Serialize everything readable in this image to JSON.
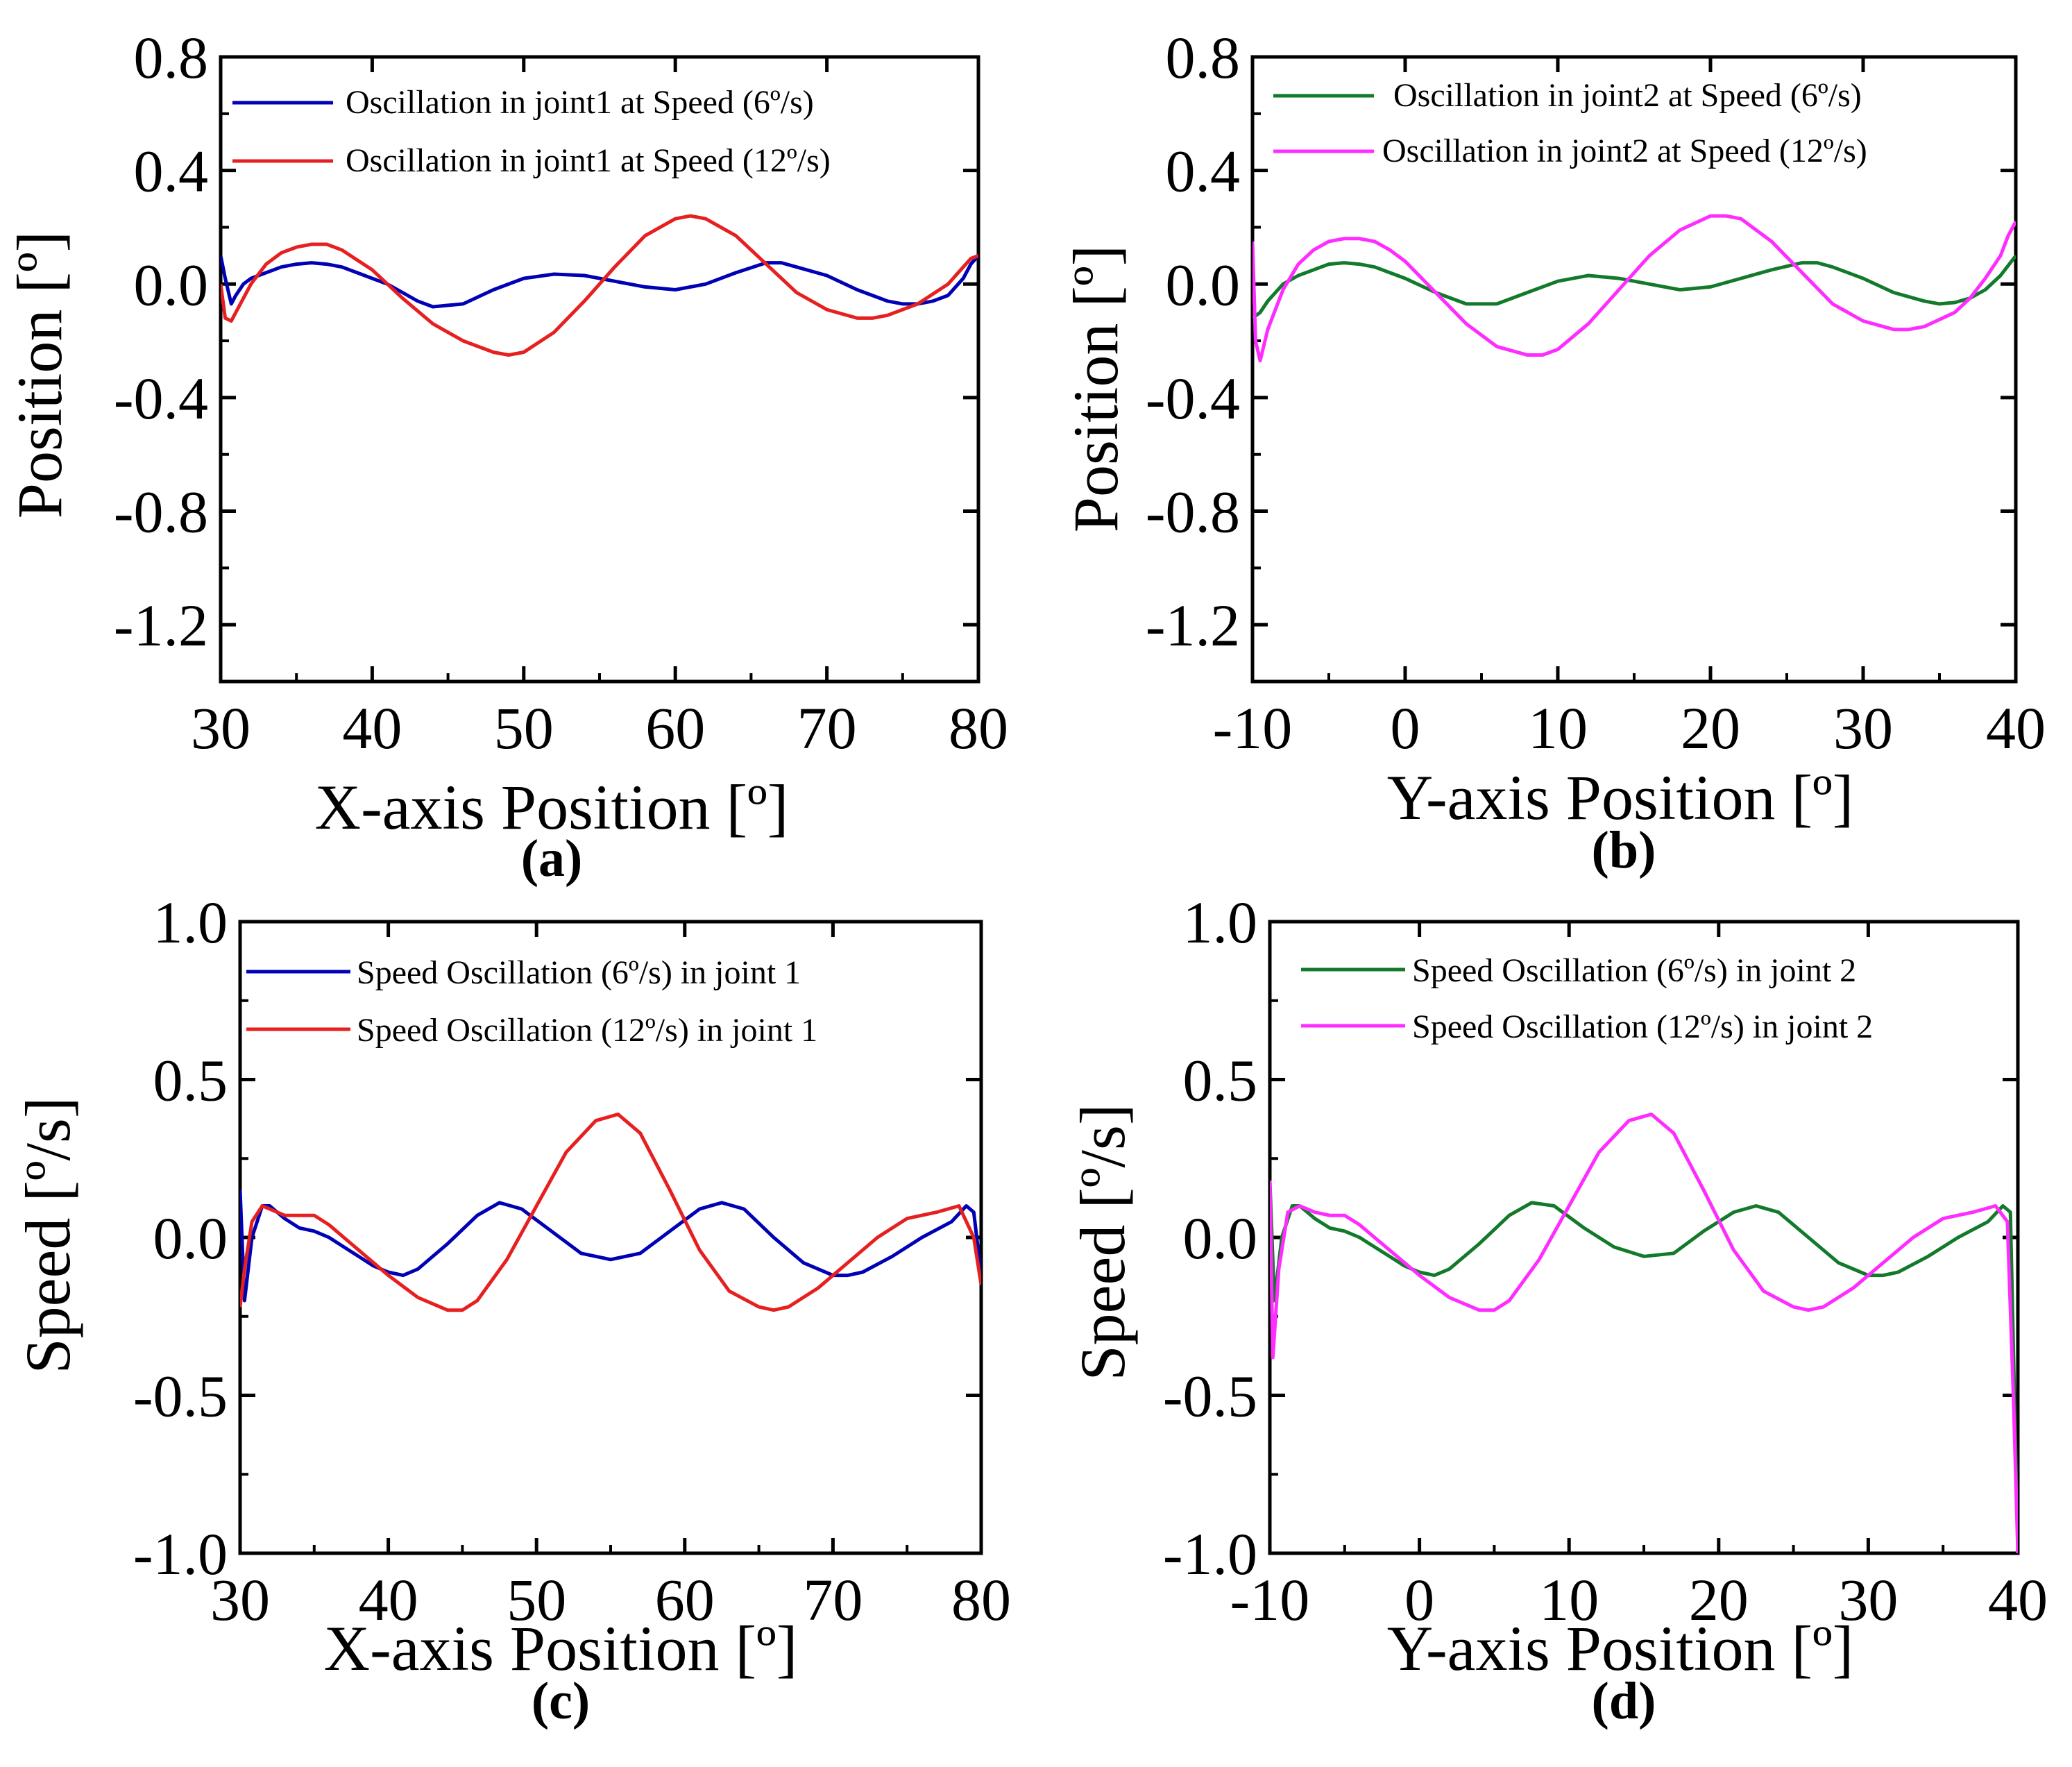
{
  "figure": {
    "panels_count": 4
  },
  "chart_data": [
    {
      "panel_label": "(a)",
      "type": "line",
      "title": "",
      "xlabel": "X-axis Position [º]",
      "ylabel": "Position [º]",
      "xlim": [
        30,
        80
      ],
      "ylim": [
        -1.4,
        0.8
      ],
      "xticks": [
        30,
        40,
        50,
        60,
        70,
        80
      ],
      "yticks": [
        0.8,
        0.4,
        0.0,
        -0.4,
        -0.8,
        -1.2
      ],
      "xtick_labels": [
        "30",
        "40",
        "50",
        "60",
        "70",
        "80"
      ],
      "ytick_labels": [
        "0.8",
        "0.4",
        "0.0",
        "-0.4",
        "-0.8",
        "-1.2"
      ],
      "legend_position": "top",
      "series": [
        {
          "name": "Oscillation in joint1 at Speed  (6º/s)",
          "color": "#0000b4",
          "x": [
            30,
            30.3,
            30.7,
            31,
            31.5,
            32,
            33,
            34,
            35,
            36,
            37,
            38,
            39,
            40,
            41,
            42,
            43,
            44,
            46,
            48,
            50,
            52,
            54,
            56,
            58,
            60,
            62,
            64,
            66,
            67,
            68,
            70,
            72,
            74,
            75,
            76,
            77,
            78,
            79,
            79.5,
            80
          ],
          "values": [
            0.1,
            0.02,
            -0.07,
            -0.04,
            0.0,
            0.02,
            0.04,
            0.06,
            0.07,
            0.075,
            0.07,
            0.06,
            0.04,
            0.02,
            0.0,
            -0.03,
            -0.06,
            -0.08,
            -0.07,
            -0.02,
            0.02,
            0.035,
            0.03,
            0.01,
            -0.01,
            -0.02,
            0.0,
            0.04,
            0.075,
            0.075,
            0.06,
            0.03,
            -0.02,
            -0.06,
            -0.07,
            -0.07,
            -0.06,
            -0.04,
            0.02,
            0.07,
            0.1
          ]
        },
        {
          "name": "Oscillation in joint1 at Speed  (12º/s)",
          "color": "#e62020",
          "x": [
            30,
            30.3,
            30.7,
            31,
            32,
            33,
            34,
            35,
            36,
            37,
            38,
            40,
            42,
            44,
            46,
            48,
            49,
            50,
            52,
            54,
            56,
            58,
            60,
            61,
            62,
            64,
            66,
            68,
            70,
            72,
            73,
            74,
            76,
            78,
            79,
            79.5,
            80
          ],
          "values": [
            0.0,
            -0.12,
            -0.13,
            -0.1,
            0.0,
            0.07,
            0.11,
            0.13,
            0.14,
            0.14,
            0.12,
            0.05,
            -0.05,
            -0.14,
            -0.2,
            -0.24,
            -0.25,
            -0.24,
            -0.17,
            -0.06,
            0.06,
            0.17,
            0.23,
            0.24,
            0.23,
            0.17,
            0.07,
            -0.03,
            -0.09,
            -0.12,
            -0.12,
            -0.11,
            -0.07,
            0.0,
            0.06,
            0.09,
            0.1
          ]
        }
      ]
    },
    {
      "panel_label": "(b)",
      "type": "line",
      "title": "",
      "xlabel": "Y-axis Position [º]",
      "ylabel": "Position [º]",
      "xlim": [
        -10,
        40
      ],
      "ylim": [
        -1.4,
        0.8
      ],
      "xticks": [
        -10,
        0,
        10,
        20,
        30,
        40
      ],
      "yticks": [
        0.8,
        0.4,
        0.0,
        -0.4,
        -0.8,
        -1.2
      ],
      "xtick_labels": [
        "-10",
        "0",
        "10",
        "20",
        "30",
        "40"
      ],
      "ytick_labels": [
        "0.8",
        "0.4",
        "0.0",
        "-0.4",
        "-0.8",
        "-1.2"
      ],
      "legend_position": "top",
      "series": [
        {
          "name": "Oscillation in joint2 at Speed  (6º/s)",
          "color": "#127a2a",
          "x": [
            -10,
            -9.5,
            -9,
            -8,
            -7,
            -6,
            -5,
            -4,
            -3,
            -2,
            -1,
            0,
            2,
            4,
            6,
            8,
            10,
            12,
            14,
            16,
            18,
            20,
            22,
            24,
            26,
            27,
            28,
            30,
            32,
            34,
            35,
            36,
            37,
            38,
            39,
            40
          ],
          "values": [
            -0.12,
            -0.1,
            -0.06,
            0.0,
            0.03,
            0.05,
            0.07,
            0.075,
            0.07,
            0.06,
            0.04,
            0.02,
            -0.03,
            -0.07,
            -0.07,
            -0.03,
            0.01,
            0.03,
            0.02,
            0.0,
            -0.02,
            -0.01,
            0.02,
            0.05,
            0.075,
            0.075,
            0.06,
            0.02,
            -0.03,
            -0.06,
            -0.07,
            -0.065,
            -0.05,
            -0.02,
            0.03,
            0.1
          ]
        },
        {
          "name": "Oscillation in joint2 at Speed  (12º/s)",
          "color": "#ff2cff",
          "x": [
            -10,
            -9.8,
            -9.5,
            -9,
            -8,
            -7,
            -6,
            -5,
            -4,
            -3,
            -2,
            -1,
            0,
            2,
            4,
            6,
            8,
            9,
            10,
            12,
            14,
            16,
            18,
            20,
            21,
            22,
            24,
            26,
            28,
            30,
            32,
            33,
            34,
            36,
            37,
            38,
            39,
            39.5,
            40
          ],
          "values": [
            0.15,
            -0.2,
            -0.27,
            -0.16,
            -0.02,
            0.07,
            0.12,
            0.15,
            0.16,
            0.16,
            0.15,
            0.12,
            0.08,
            -0.03,
            -0.14,
            -0.22,
            -0.25,
            -0.25,
            -0.23,
            -0.14,
            -0.02,
            0.1,
            0.19,
            0.24,
            0.24,
            0.23,
            0.15,
            0.04,
            -0.07,
            -0.13,
            -0.16,
            -0.16,
            -0.15,
            -0.1,
            -0.05,
            0.02,
            0.1,
            0.17,
            0.22
          ]
        }
      ]
    },
    {
      "panel_label": "(c)",
      "type": "line",
      "title": "",
      "xlabel": "X-axis Position [º]",
      "ylabel": "Speed [º/s]",
      "xlim": [
        30,
        80
      ],
      "ylim": [
        -1.0,
        1.0
      ],
      "xticks": [
        30,
        40,
        50,
        60,
        70,
        80
      ],
      "yticks": [
        1.0,
        0.5,
        0.0,
        -0.5,
        -1.0
      ],
      "xtick_labels": [
        "30",
        "40",
        "50",
        "60",
        "70",
        "80"
      ],
      "ytick_labels": [
        "1.0",
        "0.5",
        "0.0",
        "-0.5",
        "-1.0"
      ],
      "legend_position": "top",
      "series": [
        {
          "name": "Speed Oscillation (6º/s) in joint 1",
          "color": "#0000b4",
          "x": [
            30,
            30.3,
            30.8,
            31.5,
            32,
            33,
            34,
            35,
            36,
            37,
            38,
            39,
            40,
            41,
            42,
            44,
            46,
            47.5,
            49,
            51,
            53,
            55,
            57,
            59,
            61,
            62.5,
            64,
            66,
            68,
            70,
            71,
            72,
            74,
            76,
            78,
            79,
            79.5,
            80
          ],
          "values": [
            0.15,
            -0.2,
            0.0,
            0.1,
            0.1,
            0.06,
            0.03,
            0.02,
            0.0,
            -0.03,
            -0.06,
            -0.09,
            -0.11,
            -0.12,
            -0.1,
            -0.02,
            0.07,
            0.11,
            0.09,
            0.02,
            -0.05,
            -0.07,
            -0.05,
            0.02,
            0.09,
            0.11,
            0.09,
            0.0,
            -0.08,
            -0.12,
            -0.12,
            -0.11,
            -0.06,
            0.0,
            0.05,
            0.1,
            0.08,
            -0.12
          ]
        },
        {
          "name": "Speed  Oscillation  (12º/s) in joint 1",
          "color": "#e62020",
          "x": [
            30,
            30.3,
            30.8,
            31.5,
            32,
            33,
            34,
            35,
            36,
            37,
            38,
            40,
            42,
            44,
            45,
            46,
            48,
            50,
            52,
            54,
            55.5,
            57,
            59,
            61,
            63,
            65,
            66,
            67,
            69,
            71,
            73,
            75,
            77,
            78.5,
            79.5,
            80
          ],
          "values": [
            -0.22,
            -0.1,
            0.05,
            0.1,
            0.09,
            0.07,
            0.07,
            0.07,
            0.04,
            0.0,
            -0.04,
            -0.12,
            -0.19,
            -0.23,
            -0.23,
            -0.2,
            -0.07,
            0.1,
            0.27,
            0.37,
            0.39,
            0.33,
            0.15,
            -0.04,
            -0.17,
            -0.22,
            -0.23,
            -0.22,
            -0.16,
            -0.08,
            0.0,
            0.06,
            0.08,
            0.1,
            0.0,
            -0.15
          ]
        }
      ]
    },
    {
      "panel_label": "(d)",
      "type": "line",
      "title": "",
      "xlabel": "Y-axis Position [º]",
      "ylabel": "Speed [º/s]",
      "xlim": [
        -10,
        40
      ],
      "ylim": [
        -1.0,
        1.0
      ],
      "xticks": [
        -10,
        0,
        10,
        20,
        30,
        40
      ],
      "yticks": [
        1.0,
        0.5,
        0.0,
        -0.5,
        -1.0
      ],
      "xtick_labels": [
        "-10",
        "0",
        "10",
        "20",
        "30",
        "40"
      ],
      "ytick_labels": [
        "1.0",
        "0.5",
        "0.0",
        "-0.5",
        "-1.0"
      ],
      "legend_position": "top",
      "series": [
        {
          "name": "Speed Oscillation (6º/s) in joint 2",
          "color": "#127a2a",
          "x": [
            -10,
            -9.7,
            -9.2,
            -8.5,
            -8,
            -7,
            -6,
            -5,
            -4,
            -3,
            -2,
            -1,
            0,
            1,
            2,
            4,
            6,
            7.5,
            9,
            11,
            13,
            15,
            17,
            19,
            21,
            22.5,
            24,
            26,
            28,
            30,
            31,
            32,
            34,
            36,
            38,
            39,
            39.5,
            40
          ],
          "values": [
            0.18,
            -0.2,
            0.0,
            0.1,
            0.1,
            0.06,
            0.03,
            0.02,
            0.0,
            -0.03,
            -0.06,
            -0.09,
            -0.11,
            -0.12,
            -0.1,
            -0.02,
            0.07,
            0.11,
            0.1,
            0.03,
            -0.03,
            -0.06,
            -0.05,
            0.02,
            0.08,
            0.1,
            0.08,
            0.0,
            -0.08,
            -0.12,
            -0.12,
            -0.11,
            -0.06,
            0.0,
            0.05,
            0.1,
            0.08,
            -1.0
          ]
        },
        {
          "name": "Speed  Oscillation  (12º/s) in joint 2",
          "color": "#ff2cff",
          "x": [
            -10,
            -9.8,
            -9.4,
            -8.8,
            -8,
            -7,
            -6,
            -5,
            -4,
            -3,
            -2,
            0,
            2,
            4,
            5,
            6,
            8,
            10,
            12,
            14,
            15.5,
            17,
            19,
            21,
            23,
            25,
            26,
            27,
            29,
            31,
            33,
            35,
            37,
            38.5,
            39.3,
            39.7,
            40
          ],
          "values": [
            0.18,
            -0.38,
            -0.1,
            0.08,
            0.1,
            0.08,
            0.07,
            0.07,
            0.04,
            0.0,
            -0.04,
            -0.12,
            -0.19,
            -0.23,
            -0.23,
            -0.2,
            -0.07,
            0.1,
            0.27,
            0.37,
            0.39,
            0.33,
            0.15,
            -0.04,
            -0.17,
            -0.22,
            -0.23,
            -0.22,
            -0.16,
            -0.08,
            0.0,
            0.06,
            0.08,
            0.1,
            0.05,
            -0.5,
            -1.0
          ]
        }
      ]
    }
  ]
}
